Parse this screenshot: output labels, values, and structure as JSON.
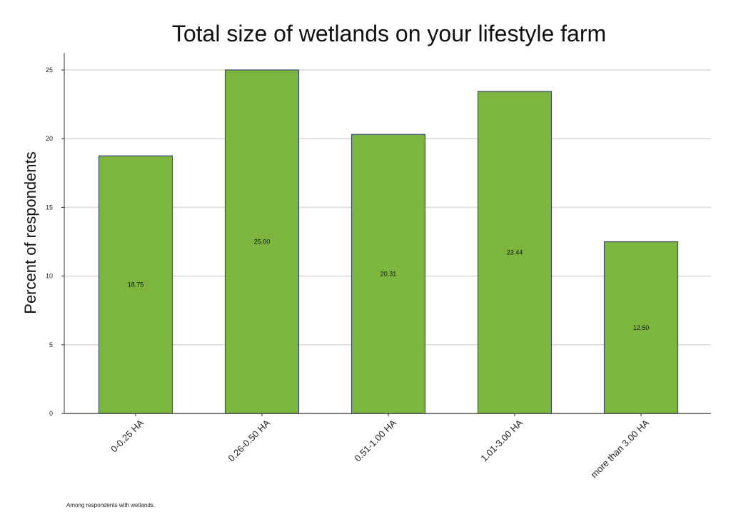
{
  "chart_data": {
    "type": "bar",
    "title": "Total size of wetlands on your lifestyle farm",
    "xlabel": "",
    "ylabel": "Percent of respondents",
    "categories": [
      "0-0.25 HA",
      "0.26-0.50 HA",
      "0.51-1.00 HA",
      "1.01-3.00 HA",
      "more than 3.00 HA"
    ],
    "values": [
      18.75,
      25.0,
      20.31,
      23.44,
      12.5
    ],
    "data_labels": [
      "18.75",
      "25.00",
      "20.31",
      "23.44",
      "12.50"
    ],
    "yticks": [
      0,
      5,
      10,
      15,
      20,
      25
    ],
    "ylim": [
      0,
      25
    ],
    "grid": true,
    "bar_color": "#7cb63f",
    "bar_edge_color": "#3f4a7a",
    "note": "Among respondents with wetlands."
  }
}
